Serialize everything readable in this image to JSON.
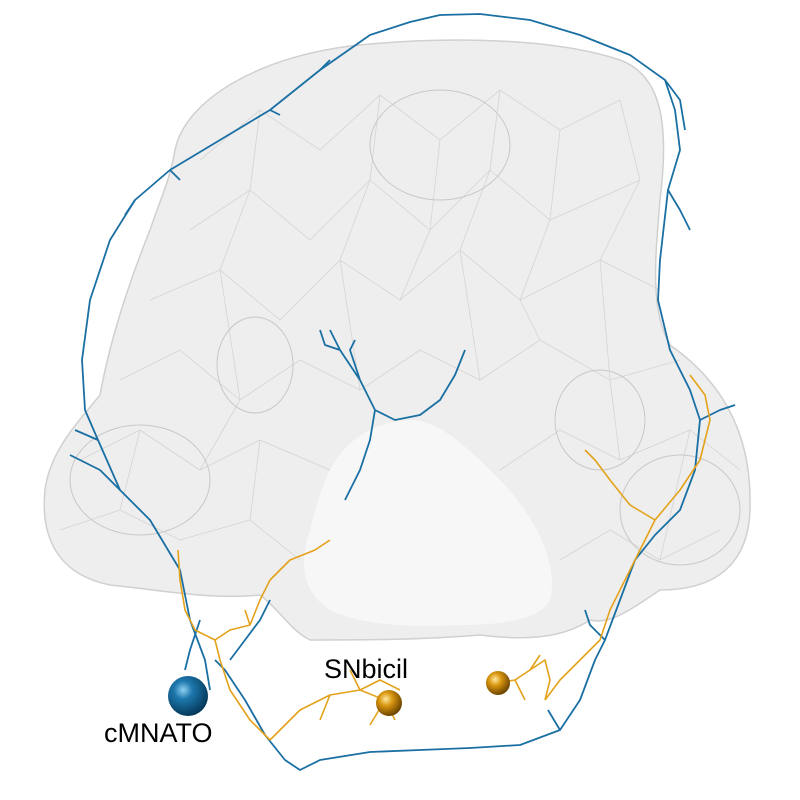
{
  "labels": {
    "neuron_a": "cMNATO",
    "neuron_b": "SNbicil"
  },
  "colors": {
    "background": "#ffffff",
    "mesh_fill": "#e9e9e9",
    "mesh_edge": "#d2d2d2",
    "neuron_a": "#1a6fa3",
    "neuron_b": "#e3a21a"
  },
  "icons": [
    "cell-body-sphere"
  ]
}
